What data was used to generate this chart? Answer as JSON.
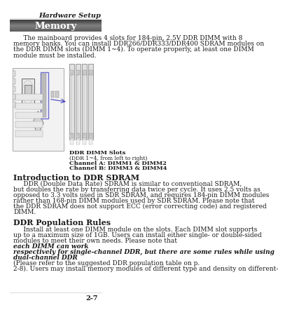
{
  "bg_color": "#ffffff",
  "header_text": "Hardware Setup",
  "title_box_text": "Memory",
  "body_lines_1": [
    "     The mainboard provides 4 slots for 184-pin, 2.5V DDR DIMM with 8",
    "memory banks. You can install DDR266/DDR333/DDR400 SDRAM modules on",
    "the DDR DIMM slots (DIMM 1~4). To operate properly, at least one DIMM",
    "module must be installed."
  ],
  "ddr_label_line1": "DDR DIMM Slots",
  "ddr_label_line2": "(DDR 1~4, from left to right)",
  "ddr_label_line3": "Channel A: DIMM1 & DIMM2",
  "ddr_label_line4": "Channel B: DIMM3 & DIMM4",
  "section1_title": "Introduction to DDR SDRAM",
  "section1_lines": [
    "     DDR (Double Data Rate) SDRAM is similar to conventional SDRAM,",
    "but doubles the rate by transferring data twice per cycle. It uses 2.5 volts as",
    "opposed to 3.3 volts used in SDR SDRAM, and requires 184-pin DIMM modules",
    "rather than 168-pin DIMM modules used by SDR SDRAM. Please note that",
    "the DDR SDRAM does not support ECC (error correcting code) and registered",
    "DIMM."
  ],
  "section2_title": "DDR Population Rules",
  "section2_normal_lines": [
    "     Install at least one DIMM module on the slots. Each DIMM slot supports",
    "up to a maximum size of 1GB. Users can install either single- or double-sided",
    "modules to meet their own needs. Please note that"
  ],
  "section2_bold_italic_lines": [
    "each DIMM can work",
    "respectively for single-channel DDR, but there are some rules while using",
    "dual-channel DDR"
  ],
  "section2_end_lines": [
    "(Please refer to the suggested DDR population table on p.",
    "2-8). Users may install memory modules of different type and density on different-"
  ],
  "footer_text": "2-7",
  "text_color": "#1a1a1a",
  "header_line_color": "#cccccc",
  "font_size_body": 6.5,
  "font_size_header": 7.0,
  "font_size_title": 9.5,
  "font_size_section": 8.0,
  "font_size_footer": 7.0,
  "font_size_label": 6.0
}
